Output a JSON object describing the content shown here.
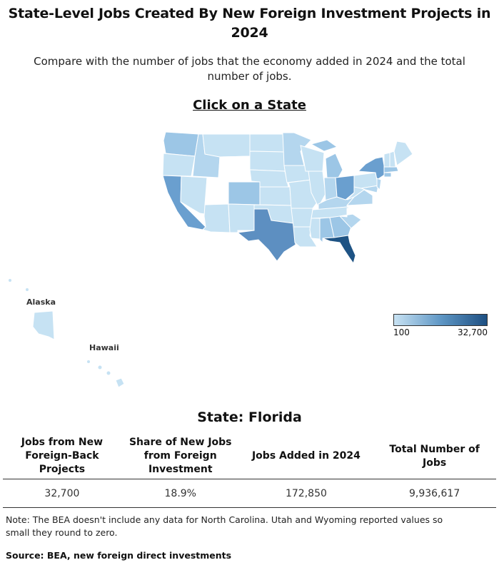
{
  "title": "State-Level Jobs Created By New Foreign Investment Projects in 2024",
  "subtitle": "Compare with the number of jobs that the economy added in 2024 and the total number of jobs.",
  "click_prompt": "Click on a State",
  "map_labels": {
    "alaska": "Alaska",
    "hawaii": "Hawaii"
  },
  "legend": {
    "min_label": "100",
    "max_label": "32,700",
    "color_low": "#c8e2f3",
    "color_mid": "#5f97c5",
    "color_high": "#1d4f82"
  },
  "selected": {
    "heading": "State: Florida",
    "headers": [
      "Jobs from New Foreign-Back Projects",
      "Share of New Jobs from Foreign Investment",
      "Jobs Added in 2024",
      "Total Number of Jobs"
    ],
    "values": [
      "32,700",
      "18.9%",
      "172,850",
      "9,936,617"
    ]
  },
  "note": "Note: The BEA doesn't include any data for North Carolina. Utah and Wyoming reported values so small they round to zero.",
  "source": "Source: BEA, new foreign direct investments",
  "colors": {
    "lightest": "#c6e2f3",
    "light": "#b4d6ee",
    "medium_light": "#9cc6e6",
    "medium": "#84b6dd",
    "medium_dark": "#6a9fcf",
    "dark": "#5d8fc1",
    "darkest": "#1e5384",
    "no_data": "#ffffff"
  }
}
